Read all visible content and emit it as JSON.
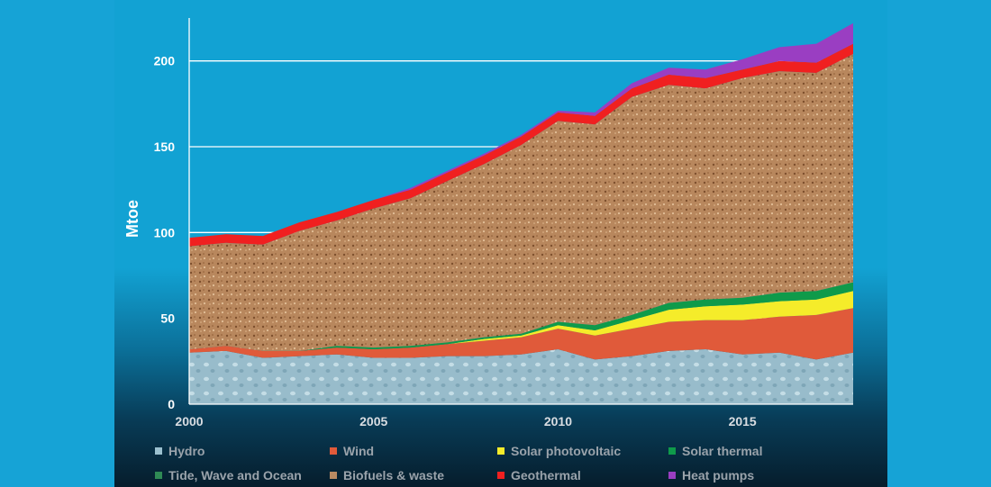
{
  "chart_data": {
    "type": "area",
    "stacked": true,
    "title": "",
    "xlabel": "",
    "ylabel": "Mtoe",
    "xlim": [
      2000,
      2018
    ],
    "ylim": [
      0,
      225
    ],
    "x_ticks": [
      2000,
      2005,
      2010,
      2015
    ],
    "y_ticks": [
      0,
      50,
      100,
      150,
      200
    ],
    "grid": "horizontal",
    "legend_position": "bottom",
    "x": [
      2000,
      2001,
      2002,
      2003,
      2004,
      2005,
      2006,
      2007,
      2008,
      2009,
      2010,
      2011,
      2012,
      2013,
      2014,
      2015,
      2016,
      2017,
      2018
    ],
    "series": [
      {
        "name": "Hydro",
        "color": "#9bc0cf",
        "values": [
          30,
          31,
          27,
          28,
          29,
          27,
          27,
          28,
          28,
          29,
          32,
          26,
          28,
          31,
          32,
          29,
          30,
          26,
          30
        ]
      },
      {
        "name": "Wind",
        "color": "#e05a3a",
        "values": [
          2,
          3,
          4,
          3,
          4,
          5,
          6,
          7,
          9,
          10,
          12,
          14,
          16,
          17,
          17,
          20,
          21,
          26,
          26
        ]
      },
      {
        "name": "Solar photovoltaic",
        "color": "#f5ec2a",
        "values": [
          0,
          0,
          0,
          0,
          0,
          0,
          0,
          0,
          1,
          1,
          2,
          3,
          5,
          7,
          8,
          9,
          9,
          9,
          10
        ]
      },
      {
        "name": "Solar thermal",
        "color": "#0f9a4a",
        "values": [
          0,
          0,
          0,
          0,
          1,
          1,
          1,
          1,
          1,
          1,
          2,
          3,
          3,
          4,
          4,
          4,
          5,
          5,
          5
        ]
      },
      {
        "name": "Tide, Wave and Ocean",
        "color": "#2f8a55",
        "values": [
          0,
          0,
          0,
          0,
          0,
          0,
          0,
          0,
          0,
          0,
          0,
          0,
          0,
          0,
          0,
          0,
          0,
          0,
          0
        ]
      },
      {
        "name": "Biofuels & waste",
        "color": "#b98a62",
        "values": [
          60,
          60,
          62,
          70,
          73,
          81,
          86,
          94,
          101,
          110,
          117,
          117,
          127,
          127,
          123,
          128,
          129,
          127,
          133
        ]
      },
      {
        "name": "Geothermal",
        "color": "#f02020",
        "values": [
          5,
          5,
          5,
          5,
          5,
          5,
          5,
          5,
          5,
          5,
          5,
          5,
          5,
          6,
          6,
          5,
          6,
          6,
          6
        ]
      },
      {
        "name": "Heat pumps",
        "color": "#9a3ec2",
        "values": [
          0,
          0,
          0,
          0,
          0,
          0,
          1,
          1,
          1,
          1,
          1,
          2,
          3,
          4,
          5,
          6,
          8,
          11,
          12
        ]
      }
    ]
  }
}
